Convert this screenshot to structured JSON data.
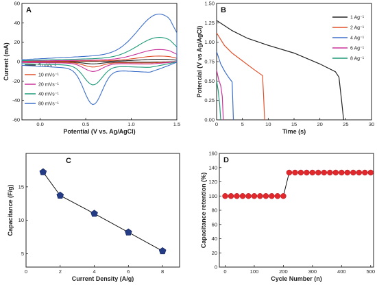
{
  "chart_data": [
    {
      "panel": "A",
      "type": "line",
      "xlabel": "Potential (V vs. Ag/AgCl)",
      "ylabel": "Current (mA)",
      "xlim": [
        -0.2,
        1.5
      ],
      "ylim": [
        -60,
        60
      ],
      "xticks": [
        "0.0",
        "0.5",
        "1.0",
        "1.5"
      ],
      "yticks": [
        "-60",
        "-40",
        "-20",
        "0",
        "20",
        "40",
        "60"
      ],
      "legend_position": "bottom-left",
      "series": [
        {
          "name": "5 mVs⁻¹",
          "color": "#222222",
          "i_upper": 2.5,
          "i_lower": -2.5
        },
        {
          "name": "10 mVs⁻¹",
          "color": "#e0502a",
          "i_upper": 6,
          "i_lower": -6
        },
        {
          "name": "20 mVs⁻¹",
          "color": "#c8329b",
          "i_upper": 13,
          "i_lower": -11
        },
        {
          "name": "40 mVs⁻¹",
          "color": "#1f9a79",
          "i_upper": 26,
          "i_lower": -26
        },
        {
          "name": "80 mVs⁻¹",
          "color": "#3d6fc9",
          "i_upper": 51,
          "i_lower": -48
        }
      ]
    },
    {
      "panel": "B",
      "type": "line",
      "xlabel": "Time (s)",
      "ylabel": "Potencial (V vs Ag/AgCl)",
      "xlim": [
        0,
        30
      ],
      "ylim": [
        0.0,
        1.5
      ],
      "xticks": [
        "0",
        "5",
        "10",
        "15",
        "20",
        "25",
        "30"
      ],
      "yticks": [
        "0.00",
        "0.25",
        "0.50",
        "0.75",
        "1.00",
        "1.25",
        "1.50"
      ],
      "legend_position": "top-right",
      "series": [
        {
          "name": "1 Ag⁻¹",
          "color": "#222222",
          "x": [
            0,
            3,
            6,
            10,
            15,
            20,
            23,
            23.7,
            24.2,
            24.6
          ],
          "y": [
            1.28,
            1.15,
            1.05,
            0.96,
            0.86,
            0.72,
            0.62,
            0.55,
            0.25,
            0.0
          ]
        },
        {
          "name": "2 Ag⁻¹",
          "color": "#e0502a",
          "x": [
            0,
            1.5,
            3,
            5,
            7,
            8.9,
            9.1,
            9.3
          ],
          "y": [
            1.12,
            0.96,
            0.86,
            0.76,
            0.66,
            0.57,
            0.3,
            0.0
          ]
        },
        {
          "name": "4 Ag⁻¹",
          "color": "#3d6fc9",
          "x": [
            0,
            0.8,
            1.6,
            2.4,
            3.0,
            3.1,
            3.25
          ],
          "y": [
            0.88,
            0.72,
            0.62,
            0.54,
            0.49,
            0.3,
            0.0
          ]
        },
        {
          "name": "6 Ag⁻¹",
          "color": "#c8329b",
          "x": [
            0,
            0.4,
            0.8,
            1.1,
            1.3
          ],
          "y": [
            0.64,
            0.52,
            0.44,
            0.3,
            0.0
          ]
        },
        {
          "name": "8 Ag⁻¹",
          "color": "#1f9a79",
          "x": [
            0,
            0.3,
            0.6,
            0.8
          ],
          "y": [
            0.5,
            0.38,
            0.2,
            0.0
          ]
        }
      ]
    },
    {
      "panel": "C",
      "type": "line",
      "xlabel": "Current Density (A/g)",
      "ylabel": "Capacitance (F/g)",
      "xlim": [
        0,
        9
      ],
      "ylim": [
        3,
        20
      ],
      "xticks": [
        "0",
        "2",
        "4",
        "6",
        "8"
      ],
      "yticks": [
        "5",
        "10",
        "15"
      ],
      "marker_color": "#243b86",
      "x": [
        1,
        2,
        4,
        6,
        8
      ],
      "y": [
        17.2,
        13.7,
        11.0,
        8.2,
        5.4
      ]
    },
    {
      "panel": "D",
      "type": "line",
      "xlabel": "Cycle Number (n)",
      "ylabel": "Capacitance retention (%)",
      "xlim": [
        -20,
        510
      ],
      "ylim": [
        0,
        160
      ],
      "xticks": [
        "0",
        "100",
        "200",
        "300",
        "400",
        "500"
      ],
      "yticks": [
        "0",
        "20",
        "40",
        "60",
        "80",
        "100",
        "120",
        "140",
        "160"
      ],
      "marker_color": "#e0282d",
      "x": [
        0,
        20,
        40,
        60,
        80,
        100,
        120,
        140,
        160,
        180,
        200,
        220,
        240,
        260,
        280,
        300,
        320,
        340,
        360,
        380,
        400,
        420,
        440,
        460,
        480,
        500
      ],
      "y": [
        100,
        100,
        100,
        100,
        100,
        100,
        100,
        100,
        100,
        100,
        100,
        133,
        133,
        133,
        133,
        133,
        133,
        133,
        133,
        133,
        133,
        133,
        133,
        133,
        133,
        133
      ]
    }
  ]
}
